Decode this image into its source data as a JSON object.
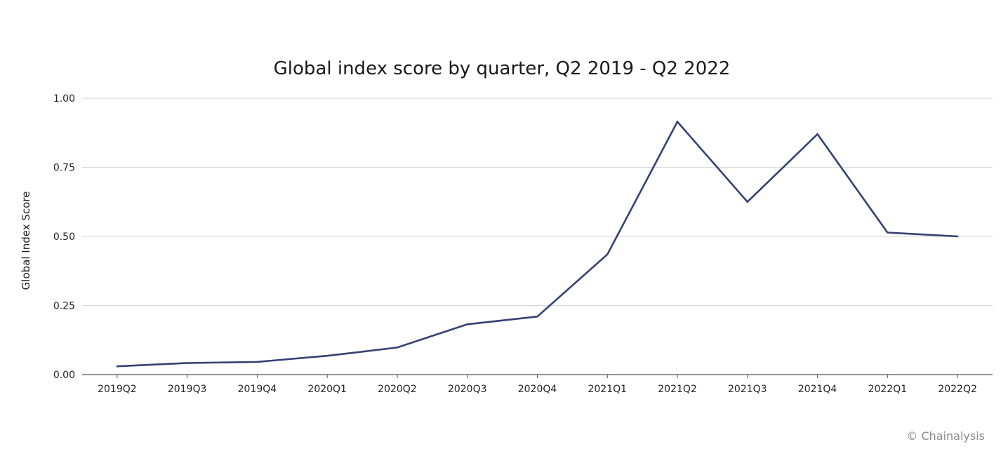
{
  "chart_data": {
    "type": "line",
    "title": "Global index score by quarter, Q2 2019 - Q2 2022",
    "xlabel": "",
    "ylabel": "Global Index Score",
    "categories": [
      "2019Q2",
      "2019Q3",
      "2019Q4",
      "2020Q1",
      "2020Q2",
      "2020Q3",
      "2020Q4",
      "2021Q1",
      "2021Q2",
      "2021Q3",
      "2021Q4",
      "2022Q1",
      "2022Q2"
    ],
    "series": [
      {
        "values": [
          0.03,
          0.042,
          0.046,
          0.068,
          0.098,
          0.182,
          0.21,
          0.435,
          0.915,
          0.625,
          0.87,
          0.514,
          0.5
        ],
        "color": "#363f73"
      }
    ],
    "ylim": [
      0,
      1
    ],
    "yticks": [
      0,
      0.25,
      0.5,
      0.75,
      1
    ],
    "ytick_labels": [
      "0.00",
      "0.25",
      "0.50",
      "0.75",
      "1.00"
    ],
    "grid": "horizontal",
    "legend": "none"
  },
  "credit": "© Chainalysis",
  "colors": {
    "line": "#363f73",
    "grid": "#d6d6d6",
    "axis": "#555555",
    "credit": "#8a8a8a"
  }
}
